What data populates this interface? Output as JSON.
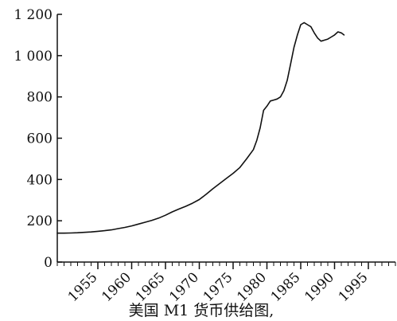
{
  "chart_data": {
    "type": "line",
    "title": "",
    "xlabel": "",
    "ylabel": "",
    "caption": "美国 M1 货币供给图,",
    "xlim": [
      1949,
      1999
    ],
    "ylim": [
      0,
      1200
    ],
    "x_ticks": [
      1955,
      1960,
      1965,
      1970,
      1975,
      1980,
      1985,
      1990,
      1995
    ],
    "x_tick_labels": [
      "1955",
      "1960",
      "1965",
      "1970",
      "1975",
      "1980",
      "1985",
      "1990",
      "1995"
    ],
    "y_ticks": [
      0,
      200,
      400,
      600,
      800,
      1000,
      1200
    ],
    "y_tick_labels": [
      "0",
      "200",
      "400",
      "600",
      "800",
      "1 000",
      "1 200"
    ],
    "grid": false,
    "legend": "none",
    "line_color": "#111111",
    "series": [
      {
        "x": [
          1949.0,
          1950,
          1951,
          1952,
          1953,
          1954,
          1955,
          1956,
          1957,
          1958,
          1959,
          1960,
          1961,
          1962,
          1963,
          1964,
          1965,
          1966,
          1967,
          1968,
          1969,
          1970,
          1971,
          1972,
          1973,
          1974,
          1975,
          1976,
          1977,
          1978,
          1978.5,
          1979,
          1979.5,
          1980,
          1980.5,
          1981,
          1981.5,
          1982,
          1982.5,
          1983,
          1983.5,
          1984,
          1984.5,
          1985,
          1985.5,
          1986,
          1986.5,
          1987,
          1987.5,
          1988,
          1988.5,
          1989,
          1989.5,
          1990,
          1990.5,
          1991,
          1991.4
        ],
        "y": [
          140,
          140,
          141,
          142,
          144,
          146,
          149,
          152,
          156,
          162,
          168,
          175,
          184,
          193,
          202,
          213,
          227,
          243,
          257,
          270,
          285,
          303,
          328,
          355,
          380,
          405,
          430,
          458,
          500,
          545,
          590,
          650,
          735,
          755,
          780,
          785,
          790,
          800,
          830,
          880,
          960,
          1040,
          1100,
          1150,
          1160,
          1150,
          1140,
          1110,
          1085,
          1070,
          1075,
          1080,
          1090,
          1100,
          1115,
          1110,
          1100
        ]
      }
    ]
  }
}
